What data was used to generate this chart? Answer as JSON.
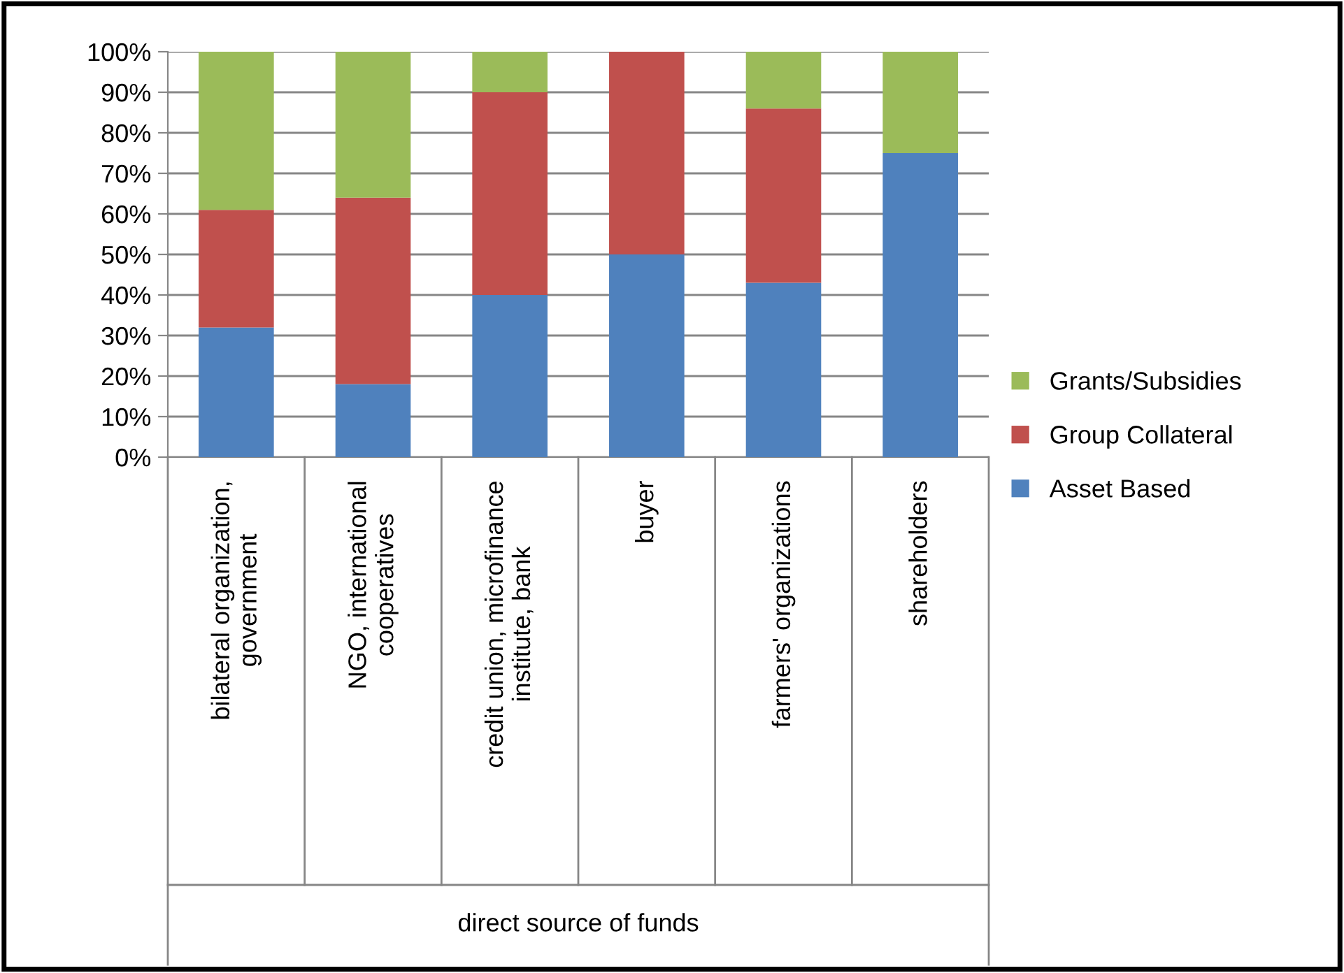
{
  "chart_data": {
    "type": "bar",
    "stacked": true,
    "annotations": [
      "direct source of funds"
    ],
    "categories": [
      "bilateral organization, government",
      "NGO, international cooperatives",
      "credit union, microfinance institute, bank",
      "buyer",
      "farmers' organizations",
      "shareholders"
    ],
    "series": [
      {
        "name": "Asset Based",
        "color": "#4f81bd",
        "values": [
          32,
          18,
          40,
          50,
          43,
          75
        ]
      },
      {
        "name": "Group Collateral",
        "color": "#c0504d",
        "values": [
          29,
          46,
          50,
          50,
          43,
          0
        ]
      },
      {
        "name": "Grants/Subsidies",
        "color": "#9bbb59",
        "values": [
          39,
          36,
          10,
          0,
          14,
          25
        ]
      }
    ],
    "ylim": [
      0,
      100
    ],
    "yticks": [
      {
        "value": 0,
        "label": "0%"
      },
      {
        "value": 10,
        "label": "10%"
      },
      {
        "value": 20,
        "label": "20%"
      },
      {
        "value": 30,
        "label": "30%"
      },
      {
        "value": 40,
        "label": "40%"
      },
      {
        "value": 50,
        "label": "50%"
      },
      {
        "value": 60,
        "label": "60%"
      },
      {
        "value": 70,
        "label": "70%"
      },
      {
        "value": 80,
        "label": "80%"
      },
      {
        "value": 90,
        "label": "90%"
      },
      {
        "value": 100,
        "label": "100%"
      }
    ],
    "grid": "y",
    "legend": "right"
  }
}
